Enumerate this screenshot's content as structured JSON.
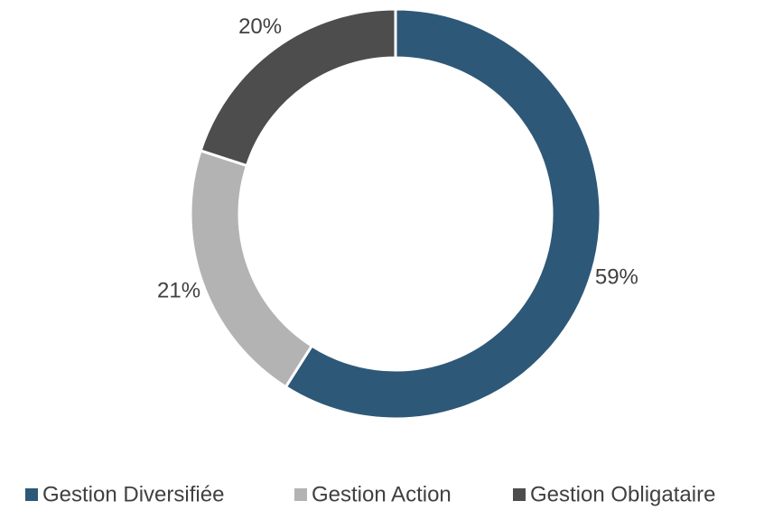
{
  "chart_data": {
    "type": "donut",
    "categories": [
      "Gestion Diversifiée",
      "Gestion Action",
      "Gestion Obligataire"
    ],
    "values": [
      59,
      21,
      20
    ],
    "value_labels": [
      "59%",
      "21%",
      "20%"
    ],
    "colors": [
      "#2e5878",
      "#b3b3b3",
      "#4d4d4d"
    ],
    "legend": "bottom"
  }
}
